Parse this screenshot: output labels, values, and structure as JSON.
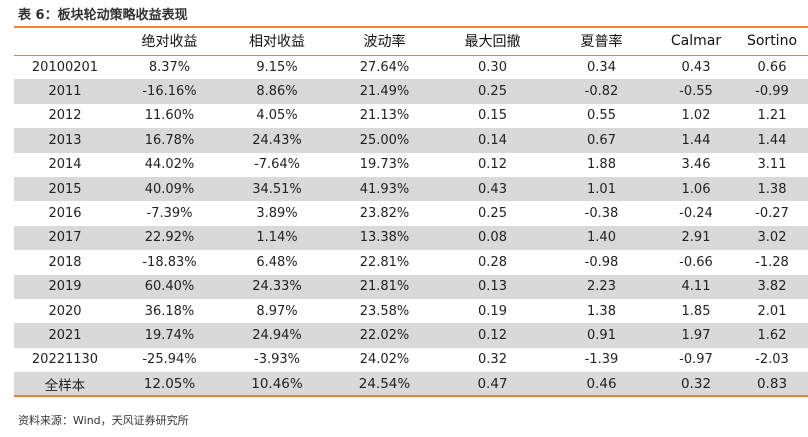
{
  "caption": "表 6：板块轮动策略收益表现",
  "table": {
    "headers": [
      "",
      "绝对收益",
      "相对收益",
      "波动率",
      "最大回撤",
      "夏普率",
      "Calmar",
      "Sortino"
    ],
    "rows": [
      [
        "20100201",
        "8.37%",
        "9.15%",
        "27.64%",
        "0.30",
        "0.34",
        "0.43",
        "0.66"
      ],
      [
        "2011",
        "-16.16%",
        "8.86%",
        "21.49%",
        "0.25",
        "-0.82",
        "-0.55",
        "-0.99"
      ],
      [
        "2012",
        "11.60%",
        "4.05%",
        "21.13%",
        "0.15",
        "0.55",
        "1.02",
        "1.21"
      ],
      [
        "2013",
        "16.78%",
        "24.43%",
        "25.00%",
        "0.14",
        "0.67",
        "1.44",
        "1.44"
      ],
      [
        "2014",
        "44.02%",
        "-7.64%",
        "19.73%",
        "0.12",
        "1.88",
        "3.46",
        "3.11"
      ],
      [
        "2015",
        "40.09%",
        "34.51%",
        "41.93%",
        "0.43",
        "1.01",
        "1.06",
        "1.38"
      ],
      [
        "2016",
        "-7.39%",
        "3.89%",
        "23.82%",
        "0.25",
        "-0.38",
        "-0.24",
        "-0.27"
      ],
      [
        "2017",
        "22.92%",
        "1.14%",
        "13.38%",
        "0.08",
        "1.40",
        "2.91",
        "3.02"
      ],
      [
        "2018",
        "-18.83%",
        "6.48%",
        "22.81%",
        "0.28",
        "-0.98",
        "-0.66",
        "-1.28"
      ],
      [
        "2019",
        "60.40%",
        "24.33%",
        "21.81%",
        "0.13",
        "2.23",
        "4.11",
        "3.82"
      ],
      [
        "2020",
        "36.18%",
        "8.97%",
        "23.58%",
        "0.19",
        "1.38",
        "1.85",
        "2.01"
      ],
      [
        "2021",
        "19.74%",
        "24.94%",
        "22.02%",
        "0.12",
        "0.91",
        "1.97",
        "1.62"
      ],
      [
        "20221130",
        "-25.94%",
        "-3.93%",
        "24.02%",
        "0.32",
        "-1.39",
        "-0.97",
        "-2.03"
      ],
      [
        "全样本",
        "12.05%",
        "10.46%",
        "24.54%",
        "0.47",
        "0.46",
        "0.32",
        "0.83"
      ]
    ]
  },
  "source": "资料来源：Wind，天风证券研究所",
  "accent_color": "#e8823a",
  "shade_color": "#d9d9d9"
}
